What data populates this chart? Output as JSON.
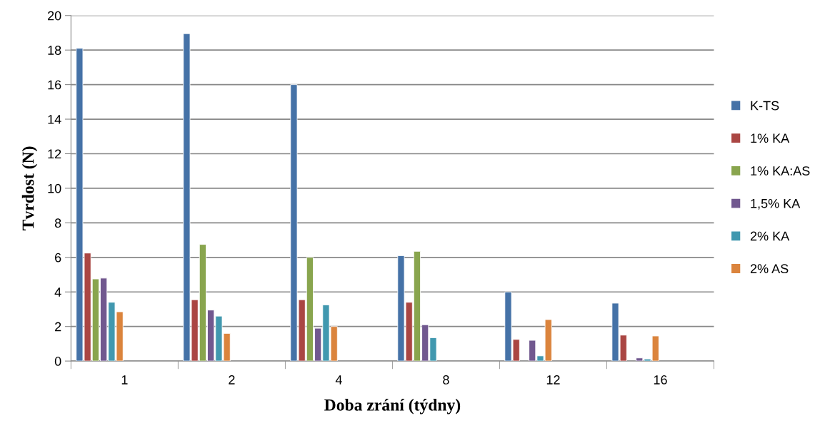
{
  "chart_data": {
    "type": "bar",
    "xlabel": "Doba zrání (týdny)",
    "ylabel": "Tvrdost (N)",
    "categories": [
      "1",
      "2",
      "4",
      "8",
      "12",
      "16"
    ],
    "series": [
      {
        "name": "K-TS",
        "color": "#4572a7",
        "values": [
          18.1,
          18.95,
          16.0,
          6.1,
          4.0,
          3.35
        ]
      },
      {
        "name": "1% KA",
        "color": "#aa4643",
        "values": [
          6.25,
          3.55,
          3.55,
          3.4,
          1.25,
          1.5
        ]
      },
      {
        "name": "1% KA:AS",
        "color": "#89a54e",
        "values": [
          4.75,
          6.75,
          6.0,
          6.35,
          null,
          null
        ]
      },
      {
        "name": "1,5% KA",
        "color": "#71588f",
        "values": [
          4.8,
          2.95,
          1.9,
          2.1,
          1.2,
          0.18
        ]
      },
      {
        "name": "2% KA",
        "color": "#4198af",
        "values": [
          3.4,
          2.6,
          3.25,
          1.35,
          0.3,
          0.12
        ]
      },
      {
        "name": "2% AS",
        "color": "#db843d",
        "values": [
          2.85,
          1.6,
          2.0,
          null,
          2.4,
          1.45
        ]
      }
    ],
    "ylim": [
      0,
      20
    ],
    "yticks": [
      0,
      2,
      4,
      6,
      8,
      10,
      12,
      14,
      16,
      18,
      20
    ],
    "grid": "y",
    "legend": "right"
  }
}
